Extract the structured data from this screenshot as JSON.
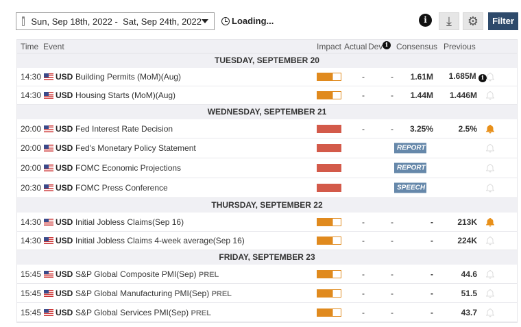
{
  "toolbar": {
    "date_range": "Sun, Sep 18th, 2022 -  Sat, Sep 24th, 2022",
    "loading": "Loading...",
    "info": "i",
    "filter": "Filter"
  },
  "headers": {
    "time": "Time",
    "event": "Event",
    "impact": "Impact",
    "actual": "Actual",
    "dev": "Dev",
    "consensus": "Consensus",
    "previous": "Previous"
  },
  "colors": {
    "medium": "#e08a1e",
    "high": "#d35a4a",
    "badge": "#6688aa",
    "filter": "#2e4a6b"
  },
  "days": [
    {
      "label": "TUESDAY, SEPTEMBER 20",
      "events": [
        {
          "time": "14:30",
          "cur": "USD",
          "name": "Building Permits (MoM)(Aug)",
          "impact": "medium",
          "actual": "-",
          "dev": "-",
          "consensus": "1.61M",
          "previous": "1.685M",
          "prev_info": true,
          "alert": false
        },
        {
          "time": "14:30",
          "cur": "USD",
          "name": "Housing Starts (MoM)(Aug)",
          "impact": "medium",
          "actual": "-",
          "dev": "-",
          "consensus": "1.44M",
          "previous": "1.446M",
          "alert": false
        }
      ]
    },
    {
      "label": "WEDNESDAY, SEPTEMBER 21",
      "events": [
        {
          "time": "20:00",
          "cur": "USD",
          "name": "Fed Interest Rate Decision",
          "impact": "high",
          "actual": "-",
          "dev": "-",
          "consensus": "3.25%",
          "previous": "2.5%",
          "alert": true
        },
        {
          "time": "20:00",
          "cur": "USD",
          "name": "Fed's Monetary Policy Statement",
          "impact": "high",
          "badge": "REPORT",
          "alert": false
        },
        {
          "time": "20:00",
          "cur": "USD",
          "name": "FOMC Economic Projections",
          "impact": "high",
          "badge": "REPORT",
          "alert": false
        },
        {
          "time": "20:30",
          "cur": "USD",
          "name": "FOMC Press Conference",
          "impact": "high",
          "badge": "SPEECH",
          "alert": false
        }
      ]
    },
    {
      "label": "THURSDAY, SEPTEMBER 22",
      "events": [
        {
          "time": "14:30",
          "cur": "USD",
          "name": "Initial Jobless Claims(Sep 16)",
          "impact": "medium",
          "actual": "-",
          "dev": "-",
          "consensus": "-",
          "previous": "213K",
          "alert": true
        },
        {
          "time": "14:30",
          "cur": "USD",
          "name": "Initial Jobless Claims 4-week average(Sep 16)",
          "impact": "medium",
          "actual": "-",
          "dev": "-",
          "consensus": "-",
          "previous": "224K",
          "alert": false
        }
      ]
    },
    {
      "label": "FRIDAY, SEPTEMBER 23",
      "events": [
        {
          "time": "15:45",
          "cur": "USD",
          "name": "S&P Global Composite PMI(Sep)",
          "prel": "PREL",
          "impact": "medium",
          "actual": "-",
          "dev": "-",
          "consensus": "-",
          "previous": "44.6",
          "alert": false
        },
        {
          "time": "15:45",
          "cur": "USD",
          "name": "S&P Global Manufacturing PMI(Sep)",
          "prel": "PREL",
          "impact": "medium",
          "actual": "-",
          "dev": "-",
          "consensus": "-",
          "previous": "51.5",
          "alert": false
        },
        {
          "time": "15:45",
          "cur": "USD",
          "name": "S&P Global Services PMI(Sep)",
          "prel": "PREL",
          "impact": "medium",
          "actual": "-",
          "dev": "-",
          "consensus": "-",
          "previous": "43.7",
          "alert": false
        }
      ]
    }
  ]
}
